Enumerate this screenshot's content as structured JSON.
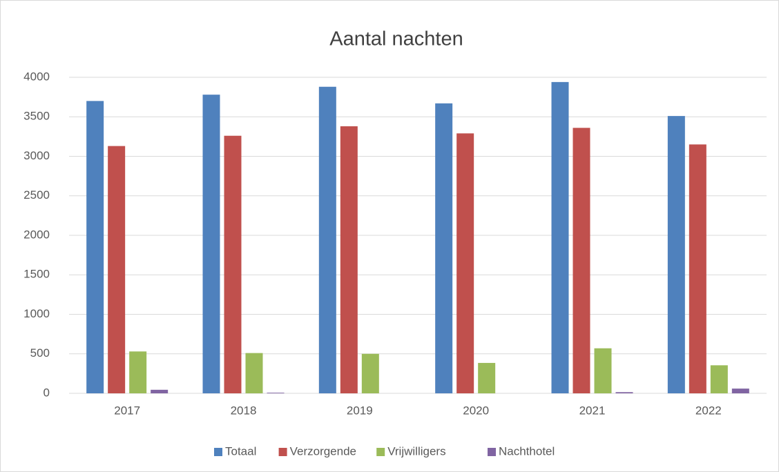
{
  "chart_data": {
    "type": "bar",
    "title": "Aantal nachten",
    "categories": [
      "2017",
      "2018",
      "2019",
      "2020",
      "2021",
      "2022"
    ],
    "series": [
      {
        "name": "Totaal",
        "color": "#4f81bd",
        "values": [
          3700,
          3780,
          3880,
          3670,
          3940,
          3510
        ]
      },
      {
        "name": "Verzorgende",
        "color": "#c0504d",
        "values": [
          3130,
          3260,
          3380,
          3290,
          3360,
          3150
        ]
      },
      {
        "name": "Vrijwilligers",
        "color": "#9bbb59",
        "values": [
          530,
          510,
          500,
          385,
          570,
          355
        ]
      },
      {
        "name": "Nachthotel",
        "color": "#8064a2",
        "values": [
          45,
          8,
          0,
          0,
          15,
          60
        ]
      }
    ],
    "ylim": [
      0,
      4000
    ],
    "yticks": [
      0,
      500,
      1000,
      1500,
      2000,
      2500,
      3000,
      3500,
      4000
    ],
    "grid": true,
    "legend": "bottom"
  }
}
